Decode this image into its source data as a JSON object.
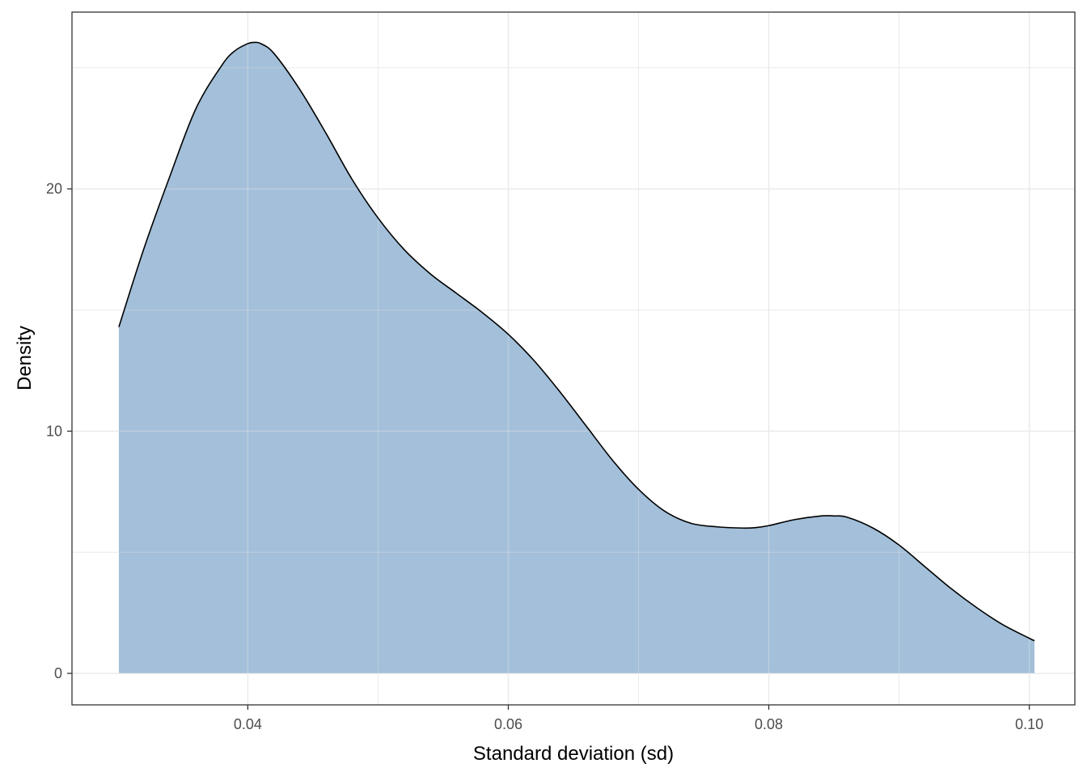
{
  "chart_data": {
    "type": "area",
    "title": "",
    "xlabel": "Standard deviation (sd)",
    "ylabel": "Density",
    "xlim": [
      0.0265,
      0.1035
    ],
    "ylim": [
      -1.3,
      27.3
    ],
    "x_ticks": [
      0.04,
      0.06,
      0.08,
      0.1
    ],
    "x_tick_labels": [
      "0.04",
      "0.06",
      "0.08",
      "0.10"
    ],
    "y_ticks": [
      0,
      10,
      20
    ],
    "y_tick_labels": [
      "0",
      "10",
      "20"
    ],
    "grid": true,
    "fill_color": "#a3bfd9",
    "line_color": "#000000",
    "series": [
      {
        "x": [
          0.0301,
          0.032,
          0.034,
          0.036,
          0.038,
          0.039,
          0.04,
          0.0405,
          0.041,
          0.042,
          0.044,
          0.046,
          0.048,
          0.05,
          0.052,
          0.054,
          0.056,
          0.058,
          0.06,
          0.062,
          0.064,
          0.066,
          0.068,
          0.07,
          0.072,
          0.074,
          0.076,
          0.078,
          0.079,
          0.08,
          0.082,
          0.084,
          0.085,
          0.086,
          0.088,
          0.09,
          0.092,
          0.094,
          0.096,
          0.098,
          0.1,
          0.1004
        ],
        "y": [
          14.3,
          17.5,
          20.5,
          23.3,
          25.1,
          25.7,
          26.0,
          26.05,
          26.0,
          25.6,
          24.1,
          22.3,
          20.4,
          18.8,
          17.5,
          16.5,
          15.7,
          14.9,
          14.0,
          12.9,
          11.6,
          10.2,
          8.8,
          7.6,
          6.7,
          6.2,
          6.05,
          6.0,
          6.02,
          6.1,
          6.35,
          6.5,
          6.5,
          6.45,
          6.0,
          5.3,
          4.4,
          3.5,
          2.7,
          2.0,
          1.45,
          1.35
        ]
      }
    ]
  }
}
